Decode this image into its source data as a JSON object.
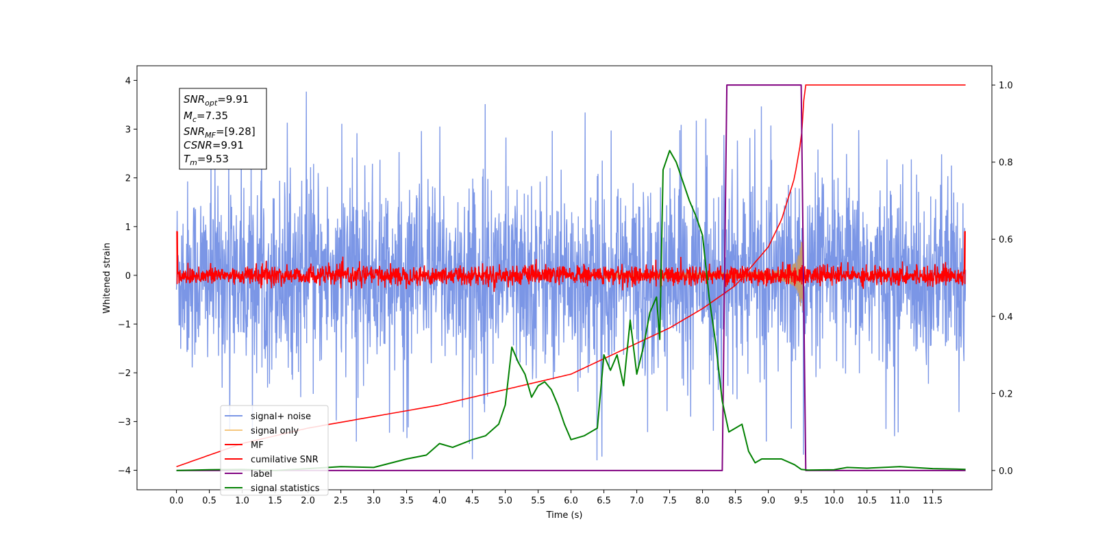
{
  "chart_data": {
    "type": "line",
    "xlabel": "Time (s)",
    "ylabel_left": "Whitened strain",
    "ylabel_right": "",
    "x_ticks": [
      "0.0",
      "0.5",
      "1.0",
      "1.5",
      "2.0",
      "2.5",
      "3.0",
      "3.5",
      "4.0",
      "4.5",
      "5.0",
      "5.5",
      "6.0",
      "6.5",
      "7.0",
      "7.5",
      "8.0",
      "8.5",
      "9.0",
      "9.5",
      "10.0",
      "10.5",
      "11.0",
      "11.5"
    ],
    "x_tick_values": [
      0.0,
      0.5,
      1.0,
      1.5,
      2.0,
      2.5,
      3.0,
      3.5,
      4.0,
      4.5,
      5.0,
      5.5,
      6.0,
      6.5,
      7.0,
      7.5,
      8.0,
      8.5,
      9.0,
      9.5,
      10.0,
      10.5,
      11.0,
      11.5
    ],
    "y_left_ticks": [
      "−4",
      "−3",
      "−2",
      "−1",
      "0",
      "1",
      "2",
      "3",
      "4"
    ],
    "y_left_tick_values": [
      -4,
      -3,
      -2,
      -1,
      0,
      1,
      2,
      3,
      4
    ],
    "y_right_ticks": [
      "0.0",
      "0.2",
      "0.4",
      "0.6",
      "0.8",
      "1.0"
    ],
    "y_right_tick_values": [
      0.0,
      0.2,
      0.4,
      0.6,
      0.8,
      1.0
    ],
    "xlim": [
      -0.6,
      12.4
    ],
    "ylim_left": [
      -4.4,
      4.3
    ],
    "ylim_right": [
      -0.05,
      1.05
    ],
    "x_range": [
      0,
      12
    ],
    "grid": false,
    "legend_position": "lower-left",
    "stats_box": {
      "snr_opt": {
        "base": "SNR",
        "sub": "opt",
        "value": "=9.91"
      },
      "mc": {
        "base": "M",
        "sub": "c",
        "value": "=7.35"
      },
      "snr_mf": {
        "base": "SNR",
        "sub": "MF",
        "value": "=[9.28]"
      },
      "csnr": {
        "base": "CSNR",
        "sub": "",
        "value": "=9.91"
      },
      "tm": {
        "base": "T",
        "sub": "m",
        "value": "=9.53"
      }
    },
    "series": [
      {
        "name": "signal+ noise",
        "color": "#7b96e6",
        "axis": "left",
        "style": "noise",
        "amplitude_std": 1.0,
        "peak_range": [
          -4.1,
          3.9
        ]
      },
      {
        "name": "signal only",
        "color": "#f5c77e",
        "axis": "left",
        "style": "chirp",
        "merger_time": 9.53,
        "peak_amplitude": 0.75
      },
      {
        "name": "MF",
        "color": "#ff0000",
        "axis": "left",
        "style": "noise",
        "amplitude_std": 0.1
      },
      {
        "name": "cumilative SNR",
        "color": "#ff0000",
        "axis": "right",
        "x": [
          0.0,
          1.0,
          2.0,
          3.0,
          4.0,
          5.0,
          6.0,
          7.0,
          7.5,
          8.0,
          8.5,
          9.0,
          9.2,
          9.4,
          9.5,
          9.53,
          9.55,
          12.0
        ],
        "y": [
          0.01,
          0.07,
          0.11,
          0.14,
          0.17,
          0.21,
          0.25,
          0.33,
          0.37,
          0.42,
          0.48,
          0.58,
          0.65,
          0.76,
          0.86,
          0.92,
          1.0,
          1.0
        ]
      },
      {
        "name": "label",
        "color": "#800080",
        "axis": "right",
        "x": [
          0.0,
          8.3,
          8.37,
          9.5,
          9.57,
          12.0
        ],
        "y": [
          0.0,
          0.0,
          1.0,
          1.0,
          0.0,
          0.0
        ]
      },
      {
        "name": "signal statistics",
        "color": "#008000",
        "axis": "right",
        "x": [
          0.0,
          0.5,
          1.0,
          1.5,
          2.0,
          2.5,
          3.0,
          3.5,
          3.8,
          4.0,
          4.2,
          4.5,
          4.7,
          4.9,
          5.0,
          5.1,
          5.2,
          5.3,
          5.4,
          5.5,
          5.6,
          5.7,
          5.8,
          5.9,
          6.0,
          6.2,
          6.4,
          6.5,
          6.6,
          6.7,
          6.8,
          6.9,
          7.0,
          7.1,
          7.2,
          7.3,
          7.35,
          7.4,
          7.5,
          7.6,
          7.7,
          7.8,
          7.9,
          8.0,
          8.1,
          8.2,
          8.3,
          8.4,
          8.5,
          8.6,
          8.7,
          8.8,
          8.9,
          9.0,
          9.2,
          9.4,
          9.5,
          9.6,
          10.0,
          10.2,
          10.5,
          11.0,
          11.5,
          12.0
        ],
        "y": [
          0.0,
          0.002,
          0.003,
          0.0,
          0.005,
          0.01,
          0.008,
          0.03,
          0.04,
          0.07,
          0.06,
          0.08,
          0.09,
          0.12,
          0.17,
          0.32,
          0.28,
          0.25,
          0.19,
          0.22,
          0.23,
          0.21,
          0.17,
          0.12,
          0.08,
          0.09,
          0.11,
          0.3,
          0.26,
          0.3,
          0.22,
          0.39,
          0.25,
          0.32,
          0.41,
          0.45,
          0.34,
          0.78,
          0.83,
          0.8,
          0.75,
          0.7,
          0.66,
          0.61,
          0.45,
          0.33,
          0.18,
          0.1,
          0.11,
          0.12,
          0.05,
          0.02,
          0.03,
          0.03,
          0.03,
          0.015,
          0.003,
          0.001,
          0.002,
          0.008,
          0.006,
          0.01,
          0.005,
          0.003
        ]
      }
    ]
  }
}
